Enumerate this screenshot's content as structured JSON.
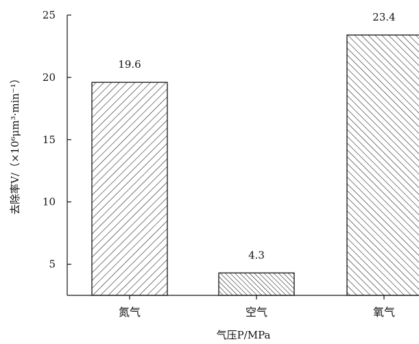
{
  "chart_data": {
    "type": "bar",
    "title": "",
    "xlabel": "气压P/MPa",
    "ylabel": "去除率V/（×10⁶μm³·min⁻¹）",
    "categories": [
      "氮气",
      "空气",
      "氧气"
    ],
    "values": [
      19.6,
      4.3,
      23.4
    ],
    "data_labels": [
      "19.6",
      "4.3",
      "23.4"
    ],
    "ylim": [
      2.5,
      25
    ],
    "yticks": [
      5,
      10,
      15,
      20,
      25
    ],
    "ytick_labels": [
      "5",
      "10",
      "15",
      "20",
      "25"
    ],
    "grid": false,
    "legend": "none",
    "hatch_patterns": [
      "forward-diagonal",
      "dense-back-diagonal",
      "back-diagonal"
    ],
    "colors": {
      "axis": "#111111",
      "bar_fill": "#ffffff",
      "hatch": "#111111"
    }
  }
}
